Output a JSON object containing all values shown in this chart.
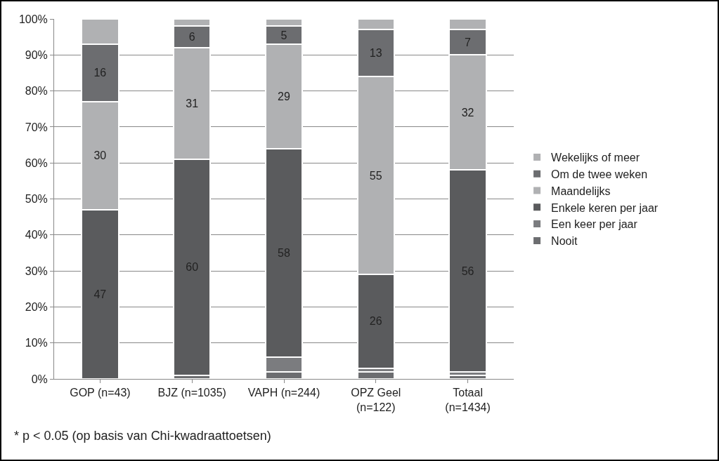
{
  "chart_data": {
    "type": "bar",
    "stacked": true,
    "categories": [
      "GOP (n=43)",
      "BJZ (n=1035)",
      "VAPH (n=244)",
      "OPZ Geel\n(n=122)",
      "Totaal\n(n=1434)"
    ],
    "series": [
      {
        "name": "Nooit",
        "color": "#6c6d70",
        "values": [
          0,
          1,
          2,
          2,
          1
        ],
        "value_labels": [
          null,
          null,
          null,
          null,
          null
        ]
      },
      {
        "name": "Een keer per jaar",
        "color": "#7b7c7f",
        "values": [
          0,
          0,
          4,
          1,
          1
        ],
        "value_labels": [
          null,
          null,
          null,
          null,
          null
        ]
      },
      {
        "name": "Enkele keren per jaar",
        "color": "#5a5b5d",
        "values": [
          47,
          60,
          58,
          26,
          56
        ],
        "value_labels": [
          "47",
          "60",
          "58",
          "26",
          "56"
        ]
      },
      {
        "name": "Maandelijks",
        "color": "#b0b1b3",
        "values": [
          30,
          31,
          29,
          55,
          32
        ],
        "value_labels": [
          "30",
          "31",
          "29",
          "55",
          "32"
        ]
      },
      {
        "name": "Om de twee weken",
        "color": "#6c6d70",
        "values": [
          16,
          6,
          5,
          13,
          7
        ],
        "value_labels": [
          "16",
          "6",
          "5",
          "13",
          "7"
        ]
      },
      {
        "name": "Wekelijks of meer",
        "color": "#b0b1b3",
        "values": [
          7,
          2,
          2,
          3,
          3
        ],
        "value_labels": [
          null,
          null,
          null,
          null,
          null
        ]
      }
    ],
    "ylim": [
      0,
      100
    ],
    "yticks": [
      {
        "value": 0,
        "label": "0%"
      },
      {
        "value": 10,
        "label": "10%"
      },
      {
        "value": 20,
        "label": "20%"
      },
      {
        "value": 30,
        "label": "30%"
      },
      {
        "value": 40,
        "label": "40%"
      },
      {
        "value": 50,
        "label": "50%"
      },
      {
        "value": 60,
        "label": "60%"
      },
      {
        "value": 70,
        "label": "70%"
      },
      {
        "value": 80,
        "label": "80%"
      },
      {
        "value": 90,
        "label": "90%"
      },
      {
        "value": 100,
        "label": "100%"
      }
    ],
    "grid": "y",
    "legend": "right",
    "annotations": [
      "* p < 0.05 (op basis van Chi-kwadraattoetsen)"
    ]
  }
}
